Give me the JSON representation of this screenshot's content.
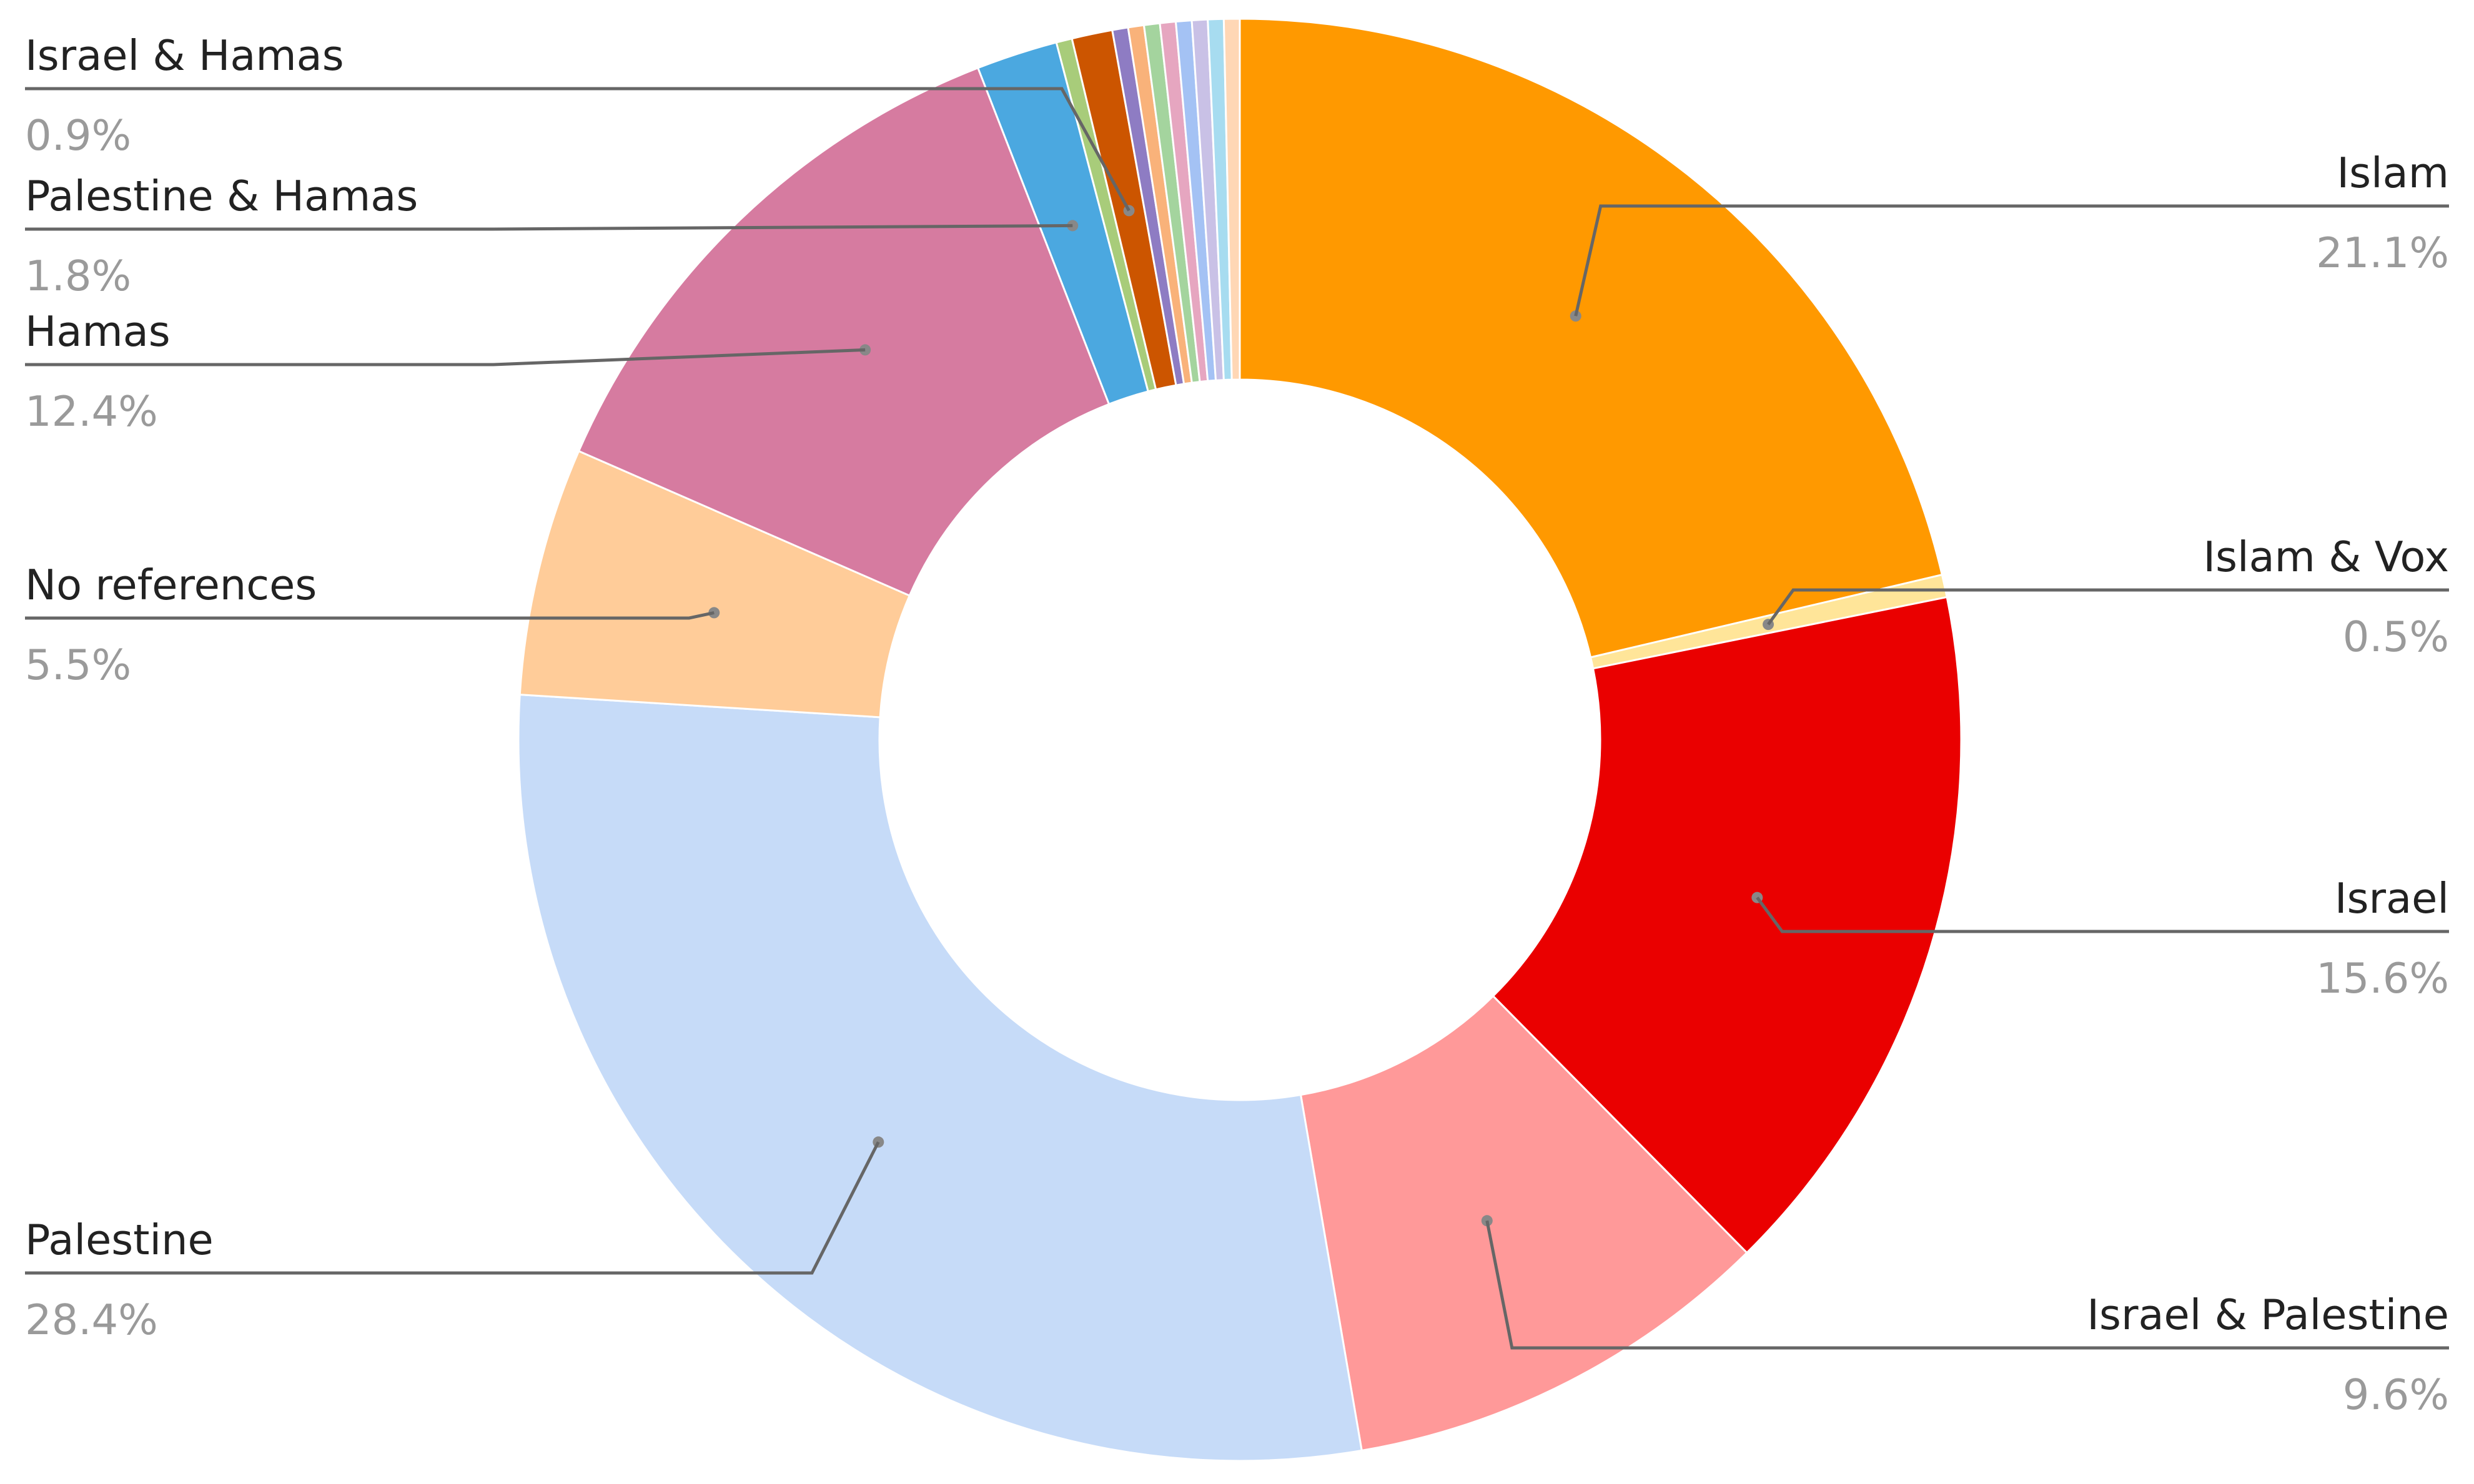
{
  "chart_data": {
    "type": "pie",
    "donut": true,
    "title": "",
    "slices": [
      {
        "label": "Islam",
        "value": 21.1,
        "pct_label": "21.1%",
        "color": "#ff9900"
      },
      {
        "label": "Islam & Vox",
        "value": 0.5,
        "pct_label": "0.5%",
        "color": "#ffe599"
      },
      {
        "label": "Israel",
        "value": 15.6,
        "pct_label": "15.6%",
        "color": "#ea0000"
      },
      {
        "label": "Israel & Palestine",
        "value": 9.6,
        "pct_label": "9.6%",
        "color": "#ff9999"
      },
      {
        "label": "Palestine",
        "value": 28.4,
        "pct_label": "28.4%",
        "color": "#c6dbf8"
      },
      {
        "label": "No references",
        "value": 5.5,
        "pct_label": "5.5%",
        "color": "#ffcc99"
      },
      {
        "label": "Hamas",
        "value": 12.4,
        "pct_label": "12.4%",
        "color": "#d67ba0"
      },
      {
        "label": "Palestine & Hamas",
        "value": 1.8,
        "pct_label": "1.8%",
        "color": "#4ba8e0"
      },
      {
        "label": "",
        "value": 0.35,
        "color": "#a8cc7a"
      },
      {
        "label": "Israel & Hamas",
        "value": 0.9,
        "pct_label": "0.9%",
        "color": "#cc5500"
      },
      {
        "label": "",
        "value": 0.35,
        "color": "#8e7cc3"
      },
      {
        "label": "",
        "value": 0.35,
        "color": "#f9b27a"
      },
      {
        "label": "",
        "value": 0.35,
        "color": "#a4d49e"
      },
      {
        "label": "",
        "value": 0.35,
        "color": "#e6a6c0"
      },
      {
        "label": "",
        "value": 0.35,
        "color": "#a4c2f4"
      },
      {
        "label": "",
        "value": 0.35,
        "color": "#c9c1e6"
      },
      {
        "label": "",
        "value": 0.35,
        "color": "#a7dcf0"
      },
      {
        "label": "",
        "value": 0.35,
        "color": "#ffd7b5"
      }
    ],
    "start_angle_deg": 0,
    "direction": "clockwise",
    "legend": "none"
  }
}
